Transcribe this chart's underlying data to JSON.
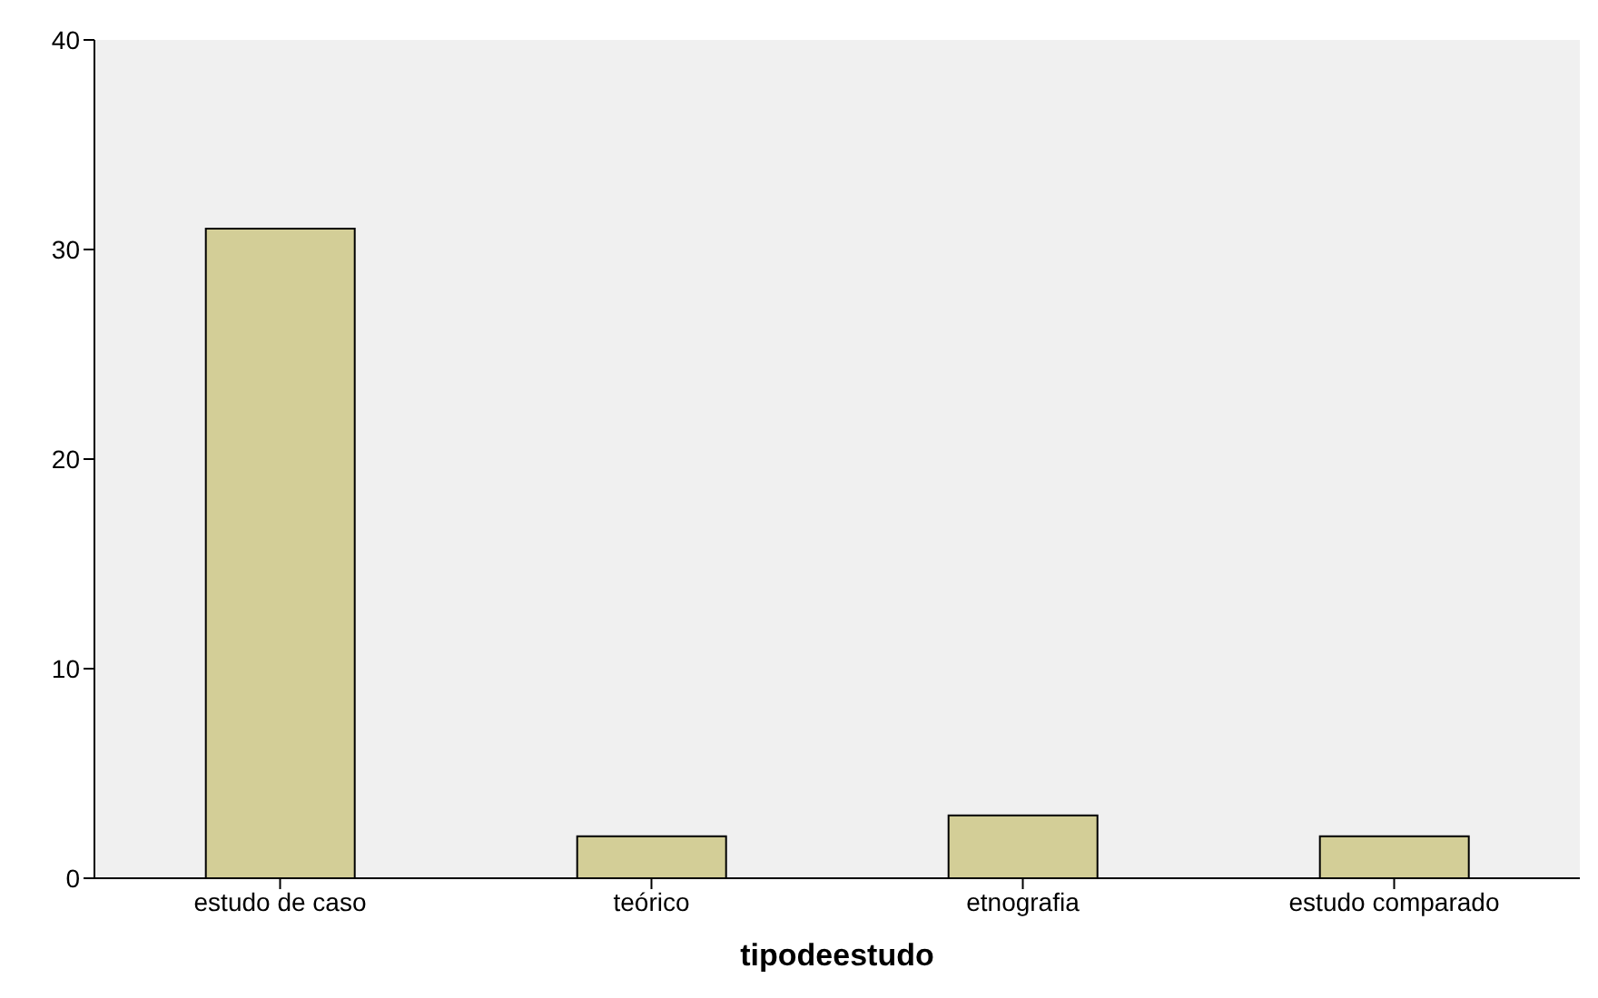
{
  "chart_data": {
    "type": "bar",
    "xlabel": "tipodeestudo",
    "categories": [
      "estudo de caso",
      "teórico",
      "etnografia",
      "estudo comparado"
    ],
    "values": [
      31,
      2,
      3,
      2
    ],
    "color": "#d3ce97",
    "ylim": [
      0,
      40
    ],
    "yticks": [
      0,
      10,
      20,
      30,
      40
    ],
    "grid": false
  }
}
